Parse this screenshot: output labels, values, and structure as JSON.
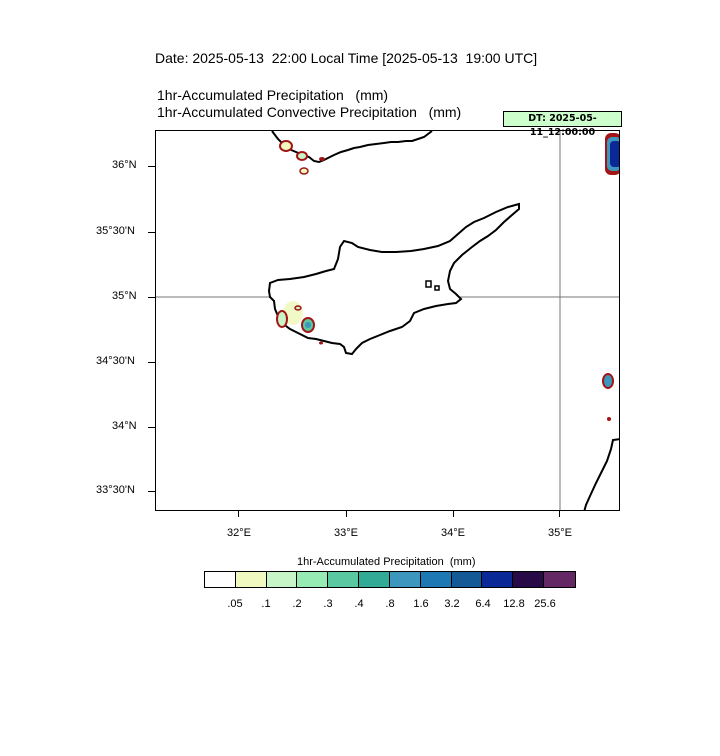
{
  "header": {
    "date_line": "Date: 2025-05-13  22:00 Local Time [2025-05-13  19:00 UTC]",
    "var_line_1": "1hr-Accumulated Precipitation   (mm)",
    "var_line_2": "1hr-Accumulated Convective Precipitation   (mm)",
    "dt_badge": "DT: 2025-05-11_12:00:00"
  },
  "map": {
    "region": "Cyprus",
    "lat_labels": [
      "36°N",
      "35°30'N",
      "35°N",
      "34°30'N",
      "34°N",
      "33°30'N"
    ],
    "lon_labels": [
      "32°E",
      "33°E",
      "34°E",
      "35°E"
    ],
    "gridlines": {
      "lon": "35°E",
      "lat": "35°N"
    }
  },
  "colorbar": {
    "title": "1hr-Accumulated Precipitation  (mm)",
    "colors": [
      "#ffffff",
      "#f0f9c0",
      "#c8f5c8",
      "#96eab4",
      "#5ac8a0",
      "#32aa96",
      "#3c96be",
      "#1e78b4",
      "#145a96",
      "#0a2896",
      "#280a46",
      "#642864"
    ],
    "labels": [
      ".05",
      ".1",
      ".2",
      ".3",
      ".4",
      ".8",
      "1.6",
      "3.2",
      "6.4",
      "12.8",
      "25.6"
    ]
  }
}
